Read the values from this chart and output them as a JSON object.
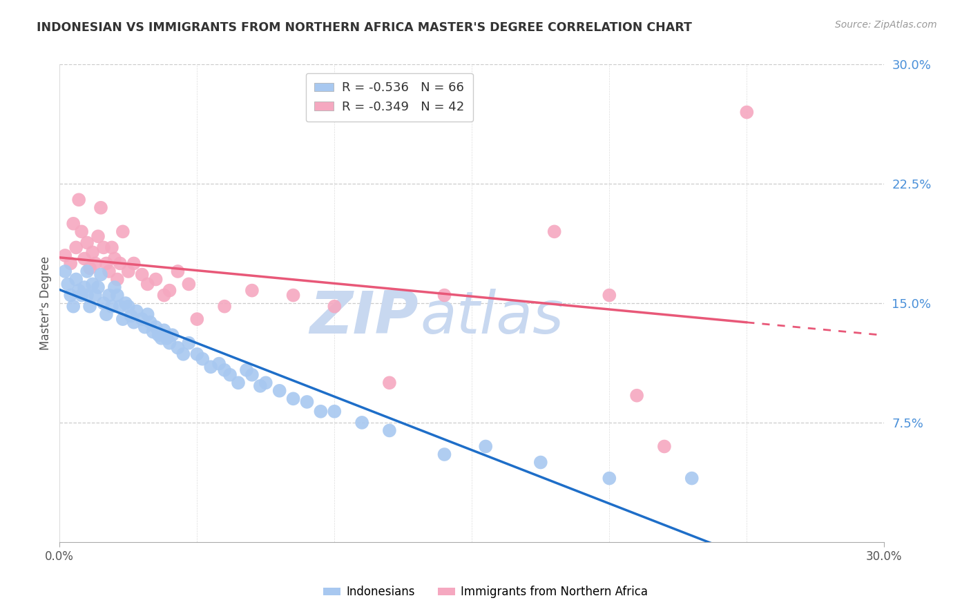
{
  "title": "INDONESIAN VS IMMIGRANTS FROM NORTHERN AFRICA MASTER'S DEGREE CORRELATION CHART",
  "source": "Source: ZipAtlas.com",
  "ylabel": "Master's Degree",
  "ytick_values": [
    0.075,
    0.15,
    0.225,
    0.3
  ],
  "xlim": [
    0.0,
    0.3
  ],
  "ylim": [
    0.0,
    0.3
  ],
  "blue_R": -0.536,
  "blue_N": 66,
  "pink_R": -0.349,
  "pink_N": 42,
  "blue_color": "#A8C8F0",
  "pink_color": "#F5A8C0",
  "blue_line_color": "#1E6EC8",
  "pink_line_color": "#E85878",
  "watermark_zip": "ZIP",
  "watermark_atlas": "atlas",
  "watermark_color": "#C8D8F0",
  "legend_label_blue": "Indonesians",
  "legend_label_pink": "Immigrants from Northern Africa",
  "blue_scatter_x": [
    0.002,
    0.003,
    0.004,
    0.005,
    0.006,
    0.007,
    0.008,
    0.009,
    0.01,
    0.01,
    0.011,
    0.012,
    0.013,
    0.014,
    0.015,
    0.016,
    0.017,
    0.018,
    0.019,
    0.02,
    0.021,
    0.022,
    0.023,
    0.024,
    0.025,
    0.026,
    0.027,
    0.028,
    0.03,
    0.031,
    0.032,
    0.033,
    0.034,
    0.035,
    0.036,
    0.037,
    0.038,
    0.039,
    0.04,
    0.041,
    0.043,
    0.045,
    0.047,
    0.05,
    0.052,
    0.055,
    0.058,
    0.06,
    0.062,
    0.065,
    0.068,
    0.07,
    0.073,
    0.075,
    0.08,
    0.085,
    0.09,
    0.095,
    0.1,
    0.11,
    0.12,
    0.14,
    0.155,
    0.175,
    0.2,
    0.23
  ],
  "blue_scatter_y": [
    0.17,
    0.162,
    0.155,
    0.148,
    0.165,
    0.158,
    0.155,
    0.16,
    0.17,
    0.155,
    0.148,
    0.162,
    0.155,
    0.16,
    0.168,
    0.15,
    0.143,
    0.155,
    0.148,
    0.16,
    0.155,
    0.148,
    0.14,
    0.15,
    0.148,
    0.142,
    0.138,
    0.145,
    0.14,
    0.135,
    0.143,
    0.138,
    0.132,
    0.135,
    0.13,
    0.128,
    0.133,
    0.128,
    0.125,
    0.13,
    0.122,
    0.118,
    0.125,
    0.118,
    0.115,
    0.11,
    0.112,
    0.108,
    0.105,
    0.1,
    0.108,
    0.105,
    0.098,
    0.1,
    0.095,
    0.09,
    0.088,
    0.082,
    0.082,
    0.075,
    0.07,
    0.055,
    0.06,
    0.05,
    0.04,
    0.04
  ],
  "pink_scatter_x": [
    0.002,
    0.004,
    0.005,
    0.006,
    0.007,
    0.008,
    0.009,
    0.01,
    0.011,
    0.012,
    0.013,
    0.014,
    0.015,
    0.016,
    0.017,
    0.018,
    0.019,
    0.02,
    0.021,
    0.022,
    0.023,
    0.025,
    0.027,
    0.03,
    0.032,
    0.035,
    0.038,
    0.04,
    0.043,
    0.047,
    0.05,
    0.06,
    0.07,
    0.085,
    0.1,
    0.12,
    0.14,
    0.18,
    0.2,
    0.21,
    0.22,
    0.25
  ],
  "pink_scatter_y": [
    0.18,
    0.175,
    0.2,
    0.185,
    0.215,
    0.195,
    0.178,
    0.188,
    0.172,
    0.182,
    0.175,
    0.192,
    0.21,
    0.185,
    0.175,
    0.17,
    0.185,
    0.178,
    0.165,
    0.175,
    0.195,
    0.17,
    0.175,
    0.168,
    0.162,
    0.165,
    0.155,
    0.158,
    0.17,
    0.162,
    0.14,
    0.148,
    0.158,
    0.155,
    0.148,
    0.1,
    0.155,
    0.195,
    0.155,
    0.092,
    0.06,
    0.27
  ]
}
